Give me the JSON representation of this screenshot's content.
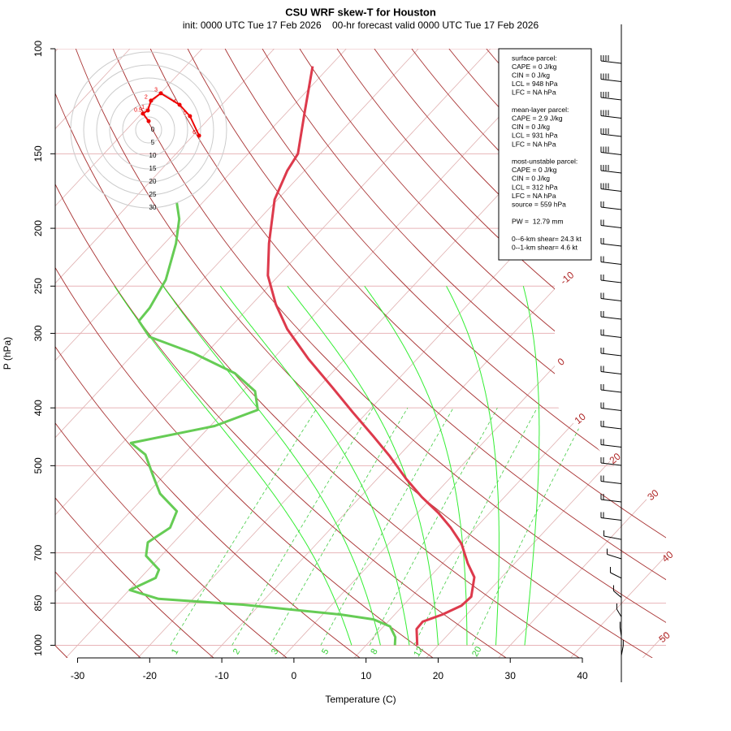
{
  "chart_data": {
    "type": "skew-t",
    "title": "CSU WRF skew-T for Houston",
    "subtitle": "init: 0000 UTC Tue 17 Feb 2026    00-hr forecast valid 0000 UTC Tue 17 Feb 2026",
    "x_label": "Temperature (C)",
    "y_label": "P (hPa)",
    "xlim": [
      -33.1,
      51.6
    ],
    "ylim": [
      1050,
      100
    ],
    "xticks": [
      -30,
      -20,
      -10,
      0,
      10,
      20,
      30,
      40
    ],
    "yticks": [
      100,
      150,
      200,
      250,
      300,
      400,
      500,
      700,
      850,
      1000
    ],
    "log_scale": "y",
    "series": [
      {
        "color": "#dd3a4c",
        "pressure": [
          1000,
          939,
          913,
          888,
          858,
          829,
          769,
          729,
          676,
          635,
          600,
          564,
          526,
          482,
          446,
          407,
          370,
          331,
          295,
          268,
          240,
          212,
          179,
          160,
          150,
          128,
          107
        ],
        "values": [
          17.1,
          14.9,
          14.8,
          16.6,
          18.1,
          18.3,
          16.2,
          13.5,
          10.1,
          6.5,
          2.9,
          -1.5,
          -6.0,
          -11.2,
          -16.1,
          -22.0,
          -28.0,
          -35.1,
          -41.9,
          -46.7,
          -51.5,
          -55.5,
          -60.4,
          -62.4,
          -63.1,
          -67.5,
          -72.4
        ]
      },
      {
        "color": "#66cc55",
        "pressure": [
          1000,
          969,
          930,
          905,
          888,
          855,
          836,
          808,
          771,
          747,
          708,
          672,
          635,
          596,
          557,
          523,
          479,
          458,
          429,
          403,
          375,
          350,
          324,
          304,
          286,
          272,
          244,
          212,
          193,
          181
        ],
        "values": [
          14.0,
          13.0,
          10.9,
          7.7,
          2.5,
          -12.3,
          -24.8,
          -29.9,
          -27.9,
          -28.5,
          -32.1,
          -33.6,
          -32.4,
          -33.6,
          -38.2,
          -41.2,
          -45.3,
          -48.8,
          -39.4,
          -35.5,
          -38.3,
          -43.4,
          -51.7,
          -60.0,
          -63.5,
          -63.7,
          -65.1,
          -68.4,
          -71.1,
          -73.6
        ]
      }
    ],
    "isotherm_labels": [
      -10,
      0,
      10,
      20,
      30,
      40,
      50
    ],
    "mixing_ratio_labels": [
      1,
      2,
      3,
      5,
      8,
      12,
      20
    ],
    "hodograph": {
      "rings": [
        0,
        5,
        10,
        15,
        20,
        25,
        30
      ],
      "color": "#ee0000",
      "u": [
        0,
        -2.2,
        -0.3,
        0.9,
        4.7,
        11.9,
        15.9,
        19.4
      ],
      "v": [
        3.4,
        6.3,
        7.5,
        11.3,
        14.1,
        9.7,
        5.3,
        -2.2
      ],
      "heights": [
        null,
        0.5,
        1,
        2,
        3,
        4,
        5,
        6
      ]
    },
    "parcel_info": [
      [
        "surface parcel:",
        "CAPE = 0 J/kg",
        "CIN = 0 J/kg",
        "LCL = 948 hPa",
        "LFC = NA hPa"
      ],
      [
        "mean-layer parcel:",
        "CAPE = 2.9 J/kg",
        "CIN = 0 J/kg",
        "LCL = 931 hPa",
        "LFC = NA hPa"
      ],
      [
        "most-unstable parcel:",
        "CAPE = 0 J/kg",
        "CIN = 0 J/kg",
        "LCL = 312 hPa",
        "LFC = NA hPa",
        "source = 559 hPa"
      ],
      [
        "PW =  12.79 mm"
      ],
      [
        "0--6-km shear= 24.3 kt",
        "0--1-km shear= 4.6 kt"
      ]
    ]
  }
}
